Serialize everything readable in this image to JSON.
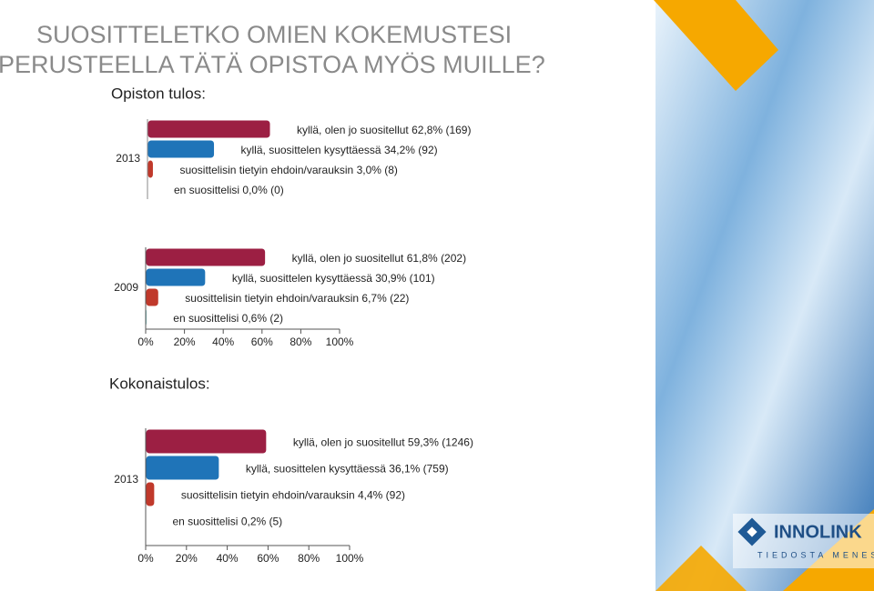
{
  "slide": {
    "title": [
      "SUOSITTELETKO OMIEN KOKEMUSTESI",
      "PERUSTEELLA TÄTÄ OPISTOA MYÖS MUILLE?"
    ],
    "section_1": "Opiston tulos:",
    "section_2": "Kokonaistulos:",
    "logo": "INNOLINK",
    "tagline": "TIEDOSTA MENESTYS"
  },
  "chart_data": [
    {
      "type": "bar",
      "orientation": "horizontal",
      "categories": [
        "2013"
      ],
      "xlim": [
        0,
        100
      ],
      "series": [
        {
          "name": "kyllä, olen jo suositellut",
          "color": "#9c1f43",
          "values": [
            62.8
          ],
          "value_labels": [
            "62,8% (169)"
          ]
        },
        {
          "name": "kyllä, suosittelen kysyttäessä",
          "color": "#1f74b8",
          "values": [
            34.2
          ],
          "value_labels": [
            "34,2% (92)"
          ]
        },
        {
          "name": "suosittelisin tietyin ehdoin/varauksin",
          "color": "#c0392b",
          "values": [
            3.0
          ],
          "value_labels": [
            "3,0% (8)"
          ]
        },
        {
          "name": "en suosittelisi",
          "color": "#1a9c9c",
          "values": [
            0.0
          ],
          "value_labels": [
            "0,0% (0)"
          ]
        }
      ]
    },
    {
      "type": "bar",
      "orientation": "horizontal",
      "categories": [
        "2009"
      ],
      "xlim": [
        0,
        100
      ],
      "xticks": [
        {
          "value": 0,
          "label": "0%"
        },
        {
          "value": 20,
          "label": "20%"
        },
        {
          "value": 40,
          "label": "40%"
        },
        {
          "value": 60,
          "label": "60%"
        },
        {
          "value": 80,
          "label": "80%"
        },
        {
          "value": 100,
          "label": "100%"
        }
      ],
      "series": [
        {
          "name": "kyllä, olen jo suositellut",
          "color": "#9c1f43",
          "values": [
            61.8
          ],
          "value_labels": [
            "61,8% (202)"
          ]
        },
        {
          "name": "kyllä, suosittelen kysyttäessä",
          "color": "#1f74b8",
          "values": [
            30.9
          ],
          "value_labels": [
            "30,9% (101)"
          ]
        },
        {
          "name": "suosittelisin tietyin ehdoin/varauksin",
          "color": "#c0392b",
          "values": [
            6.7
          ],
          "value_labels": [
            "6,7% (22)"
          ]
        },
        {
          "name": "en suosittelisi",
          "color": "#1a9c9c",
          "values": [
            0.6
          ],
          "value_labels": [
            "0,6% (2)"
          ]
        }
      ]
    },
    {
      "type": "bar",
      "orientation": "horizontal",
      "categories": [
        "2013"
      ],
      "xlim": [
        0,
        100
      ],
      "xticks": [
        {
          "value": 0,
          "label": "0%"
        },
        {
          "value": 20,
          "label": "20%"
        },
        {
          "value": 40,
          "label": "40%"
        },
        {
          "value": 60,
          "label": "60%"
        },
        {
          "value": 80,
          "label": "80%"
        },
        {
          "value": 100,
          "label": "100%"
        }
      ],
      "series": [
        {
          "name": "kyllä, olen jo suositellut",
          "color": "#9c1f43",
          "values": [
            59.3
          ],
          "value_labels": [
            "59,3% (1246)"
          ]
        },
        {
          "name": "kyllä, suosittelen kysyttäessä",
          "color": "#1f74b8",
          "values": [
            36.1
          ],
          "value_labels": [
            "36,1% (759)"
          ]
        },
        {
          "name": "suosittelisin tietyin ehdoin/varauksin",
          "color": "#c0392b",
          "values": [
            4.4
          ],
          "value_labels": [
            "4,4% (92)"
          ]
        },
        {
          "name": "en suosittelisi",
          "color": "#1a9c9c",
          "values": [
            0.2
          ],
          "value_labels": [
            "0,2% (5)"
          ]
        }
      ]
    }
  ]
}
